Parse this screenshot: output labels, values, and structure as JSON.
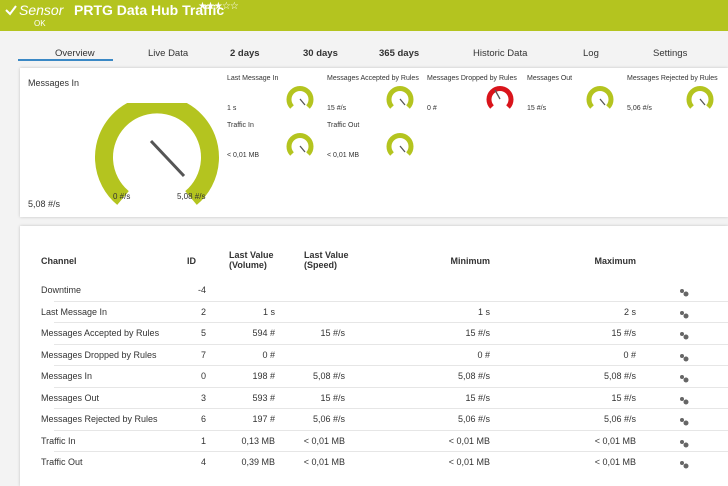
{
  "header": {
    "prefix": "Sensor",
    "title": "PRTG Data Hub Traffic",
    "status": "OK"
  },
  "tabs": [
    "Overview",
    "Live Data",
    "2  days",
    "30  days",
    "365 days",
    "Historic Data",
    "Log",
    "Settings"
  ],
  "main_gauge": {
    "label": "Messages In",
    "value": "5,08 #/s",
    "min": "0 #/s",
    "max": "5,08 #/s"
  },
  "gauges": [
    {
      "label": "Last Message In",
      "value": "1 s"
    },
    {
      "label": "Messages Accepted by Rules",
      "value": "15 #/s"
    },
    {
      "label": "Messages Dropped by Rules",
      "value": "0 #"
    },
    {
      "label": "Messages Out",
      "value": "15 #/s"
    },
    {
      "label": "Messages Rejected by Rules",
      "value": "5,06 #/s"
    },
    {
      "label": "Traffic In",
      "value": "< 0,01 MB"
    },
    {
      "label": "Traffic Out",
      "value": "< 0,01 MB"
    }
  ],
  "table": {
    "columns": [
      "Channel",
      "ID",
      "Last Value (Volume)",
      "Last Value (Speed)",
      "Minimum",
      "Maximum"
    ],
    "rows": [
      [
        "Downtime",
        "-4",
        null,
        null,
        null,
        null
      ],
      [
        "Last Message In",
        "2",
        "1 s",
        null,
        "1 s",
        "2 s"
      ],
      [
        "Messages Accepted by Rules",
        "5",
        "594 #",
        "15 #/s",
        "15 #/s",
        "15 #/s"
      ],
      [
        "Messages Dropped by Rules",
        "7",
        "0 #",
        null,
        "0 #",
        "0 #"
      ],
      [
        "Messages In",
        "0",
        "198 #",
        "5,08 #/s",
        "5,08 #/s",
        "5,08 #/s"
      ],
      [
        "Messages Out",
        "3",
        "593 #",
        "15 #/s",
        "15 #/s",
        "15 #/s"
      ],
      [
        "Messages Rejected by Rules",
        "6",
        "197 #",
        "5,06 #/s",
        "5,06 #/s",
        "5,06 #/s"
      ],
      [
        "Traffic In",
        "1",
        "0,13 MB",
        "< 0,01 MB",
        "< 0,01 MB",
        "< 0,01 MB"
      ],
      [
        "Traffic Out",
        "4",
        "0,39 MB",
        "< 0,01 MB",
        "< 0,01 MB",
        "< 0,01 MB"
      ]
    ]
  }
}
